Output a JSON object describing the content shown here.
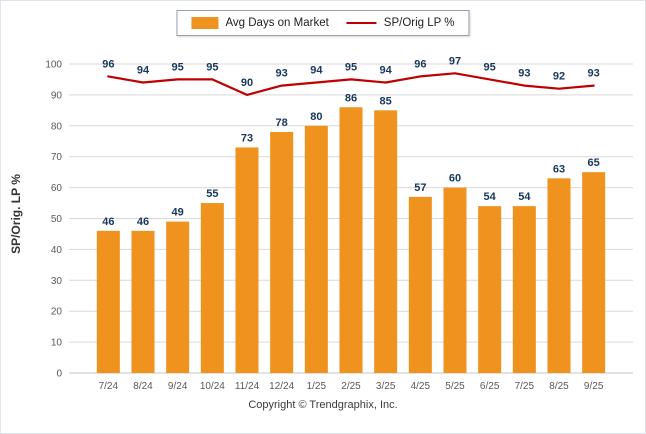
{
  "legend": {
    "bar_label": "Avg Days on Market",
    "line_label": "SP/Orig LP %"
  },
  "y_axis_title": "SP/Orig. LP %",
  "footer": "Copyright © Trendgraphix, Inc.",
  "colors": {
    "bar": "#F0921E",
    "line": "#C00000",
    "value_label": "#17375E",
    "tick_label": "#595959",
    "grid": "#D9D9D9",
    "baseline": "#C6C6C6"
  },
  "chart_data": {
    "type": "bar",
    "categories": [
      "7/24",
      "8/24",
      "9/24",
      "10/24",
      "11/24",
      "12/24",
      "1/25",
      "2/25",
      "3/25",
      "4/25",
      "5/25",
      "6/25",
      "7/25",
      "8/25",
      "9/25"
    ],
    "series": [
      {
        "name": "Avg Days on Market",
        "type": "bar",
        "values": [
          46,
          46,
          49,
          55,
          73,
          78,
          80,
          86,
          85,
          57,
          60,
          54,
          54,
          63,
          65
        ]
      },
      {
        "name": "SP/Orig LP %",
        "type": "line",
        "values": [
          96,
          94,
          95,
          95,
          90,
          93,
          94,
          95,
          94,
          96,
          97,
          95,
          93,
          92,
          93
        ]
      }
    ],
    "ylabel": "SP/Orig. LP %",
    "ylim": [
      0,
      100
    ],
    "y_tick_step": 10,
    "grid": "horizontal",
    "legend_position": "top-center",
    "data_labels": true
  }
}
